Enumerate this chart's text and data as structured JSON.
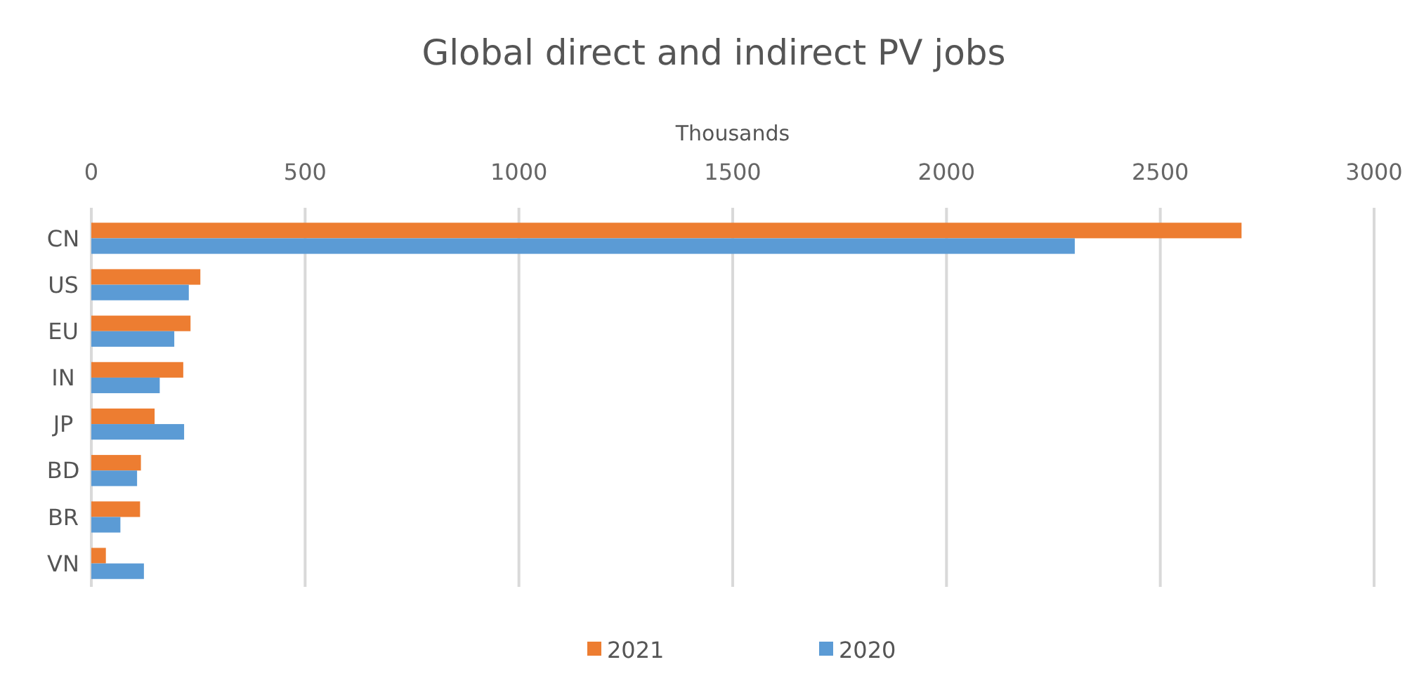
{
  "chart_data": {
    "type": "bar",
    "orientation": "horizontal",
    "title": "Global direct and indirect PV jobs",
    "xlabel": "Thousands",
    "categories": [
      "CN",
      "US",
      "EU",
      "IN",
      "JP",
      "BD",
      "BR",
      "VN"
    ],
    "series": [
      {
        "name": "2021",
        "color": "#ed7d31",
        "values": [
          2690,
          255,
          232,
          215,
          148,
          116,
          114,
          34
        ]
      },
      {
        "name": "2020",
        "color": "#5b9bd5",
        "values": [
          2300,
          228,
          194,
          160,
          217,
          107,
          68,
          123
        ]
      }
    ],
    "xlim": [
      0,
      3000
    ],
    "xticks": [
      0,
      500,
      1000,
      1500,
      2000,
      2500,
      3000
    ],
    "grid": "x",
    "legend": "bottom"
  }
}
